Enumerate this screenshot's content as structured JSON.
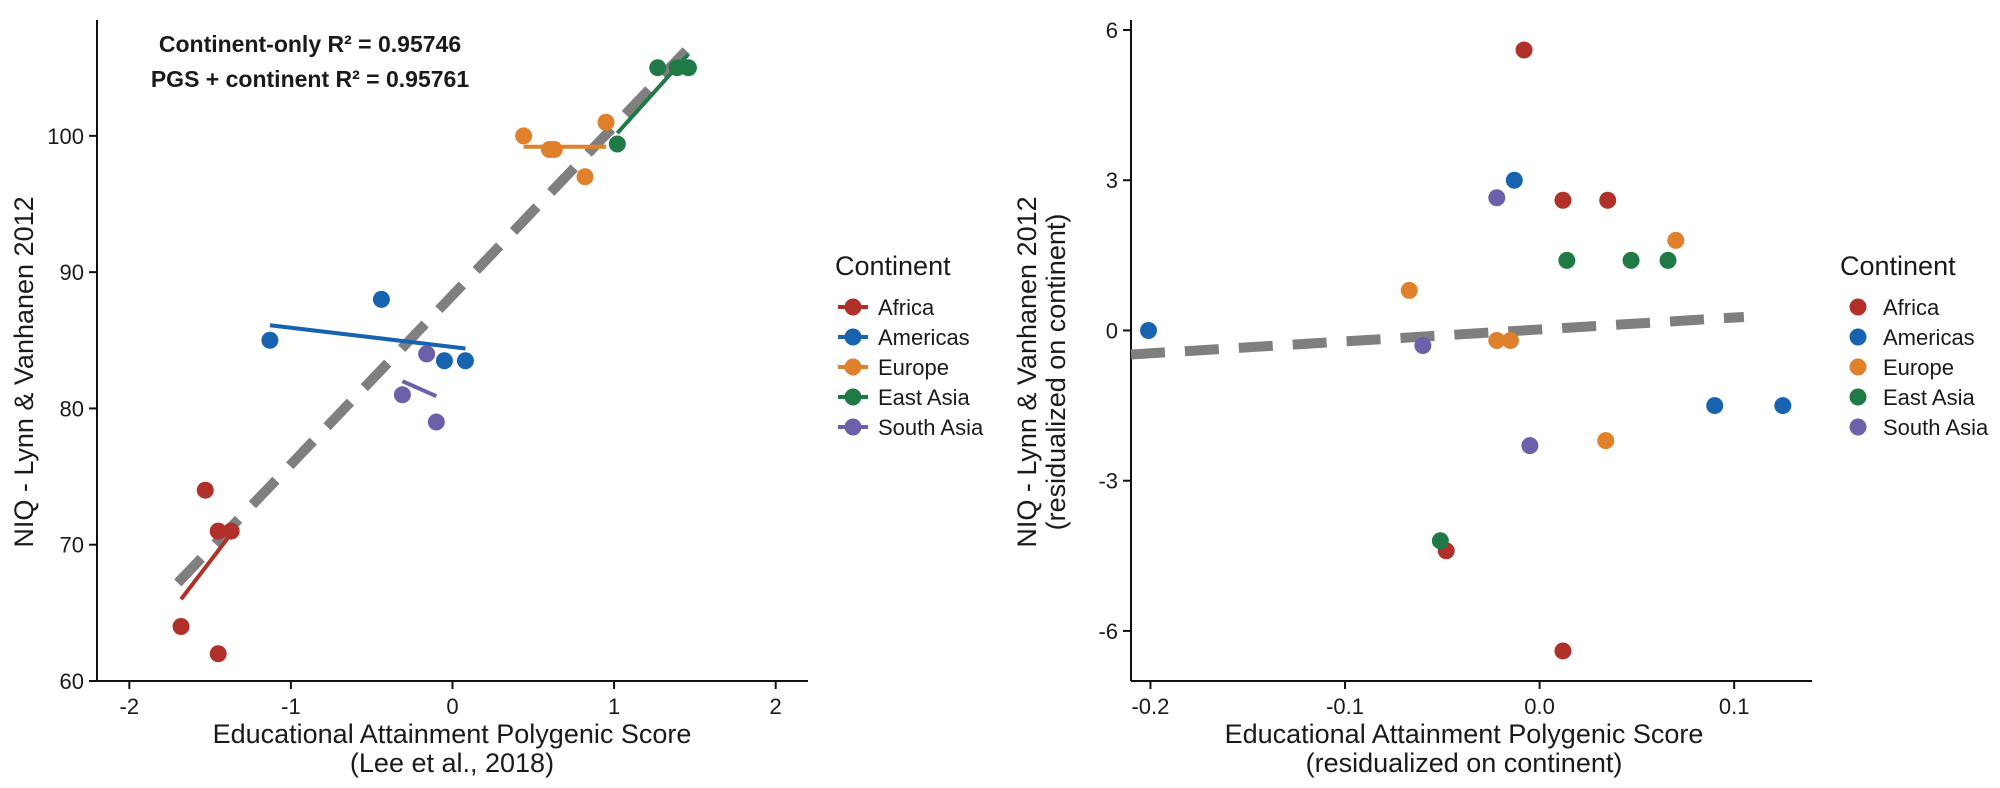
{
  "charts": [
    {
      "id": "left",
      "type": "scatter",
      "xlabel": [
        "Educational Attainment Polygenic Score",
        "(Lee et al., 2018)"
      ],
      "ylabel": [
        "NIQ - Lynn & Vanhanen 2012"
      ],
      "xlim": [
        -2.2,
        2.2
      ],
      "ylim": [
        60,
        108.5
      ],
      "xticks": [
        {
          "v": -2,
          "label": "-2"
        },
        {
          "v": -1,
          "label": "-1"
        },
        {
          "v": 0,
          "label": "0"
        },
        {
          "v": 1,
          "label": "1"
        },
        {
          "v": 2,
          "label": "2"
        }
      ],
      "yticks": [
        {
          "v": 60,
          "label": "60"
        },
        {
          "v": 70,
          "label": "70"
        },
        {
          "v": 80,
          "label": "80"
        },
        {
          "v": 90,
          "label": "90"
        },
        {
          "v": 100,
          "label": "100"
        }
      ],
      "annotations": [
        "Continent-only R² = 0.95746",
        "PGS + continent R² = 0.95761"
      ],
      "legend_title": "Continent",
      "overall_fit": {
        "x": [
          -1.7,
          1.45
        ],
        "y": [
          67.2,
          106.3
        ]
      }
    },
    {
      "id": "right",
      "type": "scatter",
      "xlabel": [
        "Educational Attainment Polygenic Score",
        "(residualized on continent)"
      ],
      "ylabel": [
        "NIQ - Lynn & Vanhanen 2012",
        "(residualized on continent)"
      ],
      "xlim": [
        -0.21,
        0.14
      ],
      "ylim": [
        -7.0,
        6.2
      ],
      "xticks": [
        {
          "v": -0.2,
          "label": "-0.2"
        },
        {
          "v": -0.1,
          "label": "-0.1"
        },
        {
          "v": 0.0,
          "label": "0.0"
        },
        {
          "v": 0.1,
          "label": "0.1"
        }
      ],
      "yticks": [
        {
          "v": -6,
          "label": "-6"
        },
        {
          "v": -3,
          "label": "-3"
        },
        {
          "v": 0,
          "label": "0"
        },
        {
          "v": 3,
          "label": "3"
        },
        {
          "v": 6,
          "label": "6"
        }
      ],
      "legend_title": "Continent",
      "overall_fit": {
        "x": [
          -0.21,
          0.105
        ],
        "y": [
          -0.48,
          0.27
        ]
      }
    }
  ],
  "series": [
    {
      "name": "Africa",
      "color": "#b2302a"
    },
    {
      "name": "Americas",
      "color": "#1763b0"
    },
    {
      "name": "Europe",
      "color": "#e0802a"
    },
    {
      "name": "East Asia",
      "color": "#1f7a45"
    },
    {
      "name": "South Asia",
      "color": "#6e5faa"
    }
  ],
  "chart_data": [
    {
      "type": "scatter",
      "xlabel": "Educational Attainment Polygenic Score (Lee et al., 2018)",
      "ylabel": "NIQ - Lynn & Vanhanen 2012",
      "series": [
        {
          "name": "Africa",
          "points": [
            [
              -1.53,
              74
            ],
            [
              -1.45,
              71
            ],
            [
              -1.37,
              71
            ],
            [
              -1.68,
              64
            ],
            [
              -1.45,
              62
            ]
          ],
          "fit": {
            "x": [
              -1.68,
              -1.37
            ],
            "y": [
              66,
              70.8
            ]
          }
        },
        {
          "name": "Americas",
          "points": [
            [
              -1.13,
              85
            ],
            [
              -0.44,
              88
            ],
            [
              -0.05,
              83.5
            ],
            [
              0.08,
              83.5
            ]
          ],
          "fit": {
            "x": [
              -1.13,
              0.08
            ],
            "y": [
              86.1,
              84.4
            ]
          }
        },
        {
          "name": "Europe",
          "points": [
            [
              0.44,
              100
            ],
            [
              0.6,
              99
            ],
            [
              0.63,
              99
            ],
            [
              0.95,
              101
            ],
            [
              0.82,
              97
            ]
          ],
          "fit": {
            "x": [
              0.44,
              0.95
            ],
            "y": [
              99.2,
              99.2
            ]
          }
        },
        {
          "name": "East Asia",
          "points": [
            [
              1.27,
              105
            ],
            [
              1.39,
              105
            ],
            [
              1.46,
              105
            ],
            [
              1.02,
              99.4
            ]
          ],
          "fit": {
            "x": [
              1.02,
              1.46
            ],
            "y": [
              100.2,
              106
            ]
          }
        },
        {
          "name": "South Asia",
          "points": [
            [
              -0.16,
              84
            ],
            [
              -0.31,
              81
            ],
            [
              -0.1,
              79
            ]
          ],
          "fit": {
            "x": [
              -0.31,
              -0.1
            ],
            "y": [
              82,
              80.9
            ]
          }
        }
      ]
    },
    {
      "type": "scatter",
      "xlabel": "Educational Attainment Polygenic Score (residualized on continent)",
      "ylabel": "NIQ - Lynn & Vanhanen 2012 (residualized on continent)",
      "series": [
        {
          "name": "Africa",
          "points": [
            [
              -0.008,
              5.6
            ],
            [
              0.012,
              2.6
            ],
            [
              0.035,
              2.6
            ],
            [
              -0.048,
              -4.4
            ],
            [
              0.012,
              -6.4
            ]
          ]
        },
        {
          "name": "Americas",
          "points": [
            [
              -0.013,
              3.0
            ],
            [
              -0.201,
              0.0
            ],
            [
              0.09,
              -1.5
            ],
            [
              0.125,
              -1.5
            ]
          ]
        },
        {
          "name": "Europe",
          "points": [
            [
              -0.067,
              0.8
            ],
            [
              -0.022,
              -0.2
            ],
            [
              -0.015,
              -0.2
            ],
            [
              0.034,
              -2.2
            ],
            [
              0.07,
              1.8
            ]
          ]
        },
        {
          "name": "East Asia",
          "points": [
            [
              0.014,
              1.4
            ],
            [
              0.047,
              1.4
            ],
            [
              0.066,
              1.4
            ],
            [
              -0.051,
              -4.2
            ]
          ]
        },
        {
          "name": "South Asia",
          "points": [
            [
              -0.022,
              2.65
            ],
            [
              -0.06,
              -0.3
            ],
            [
              -0.005,
              -2.3
            ]
          ]
        }
      ]
    }
  ]
}
